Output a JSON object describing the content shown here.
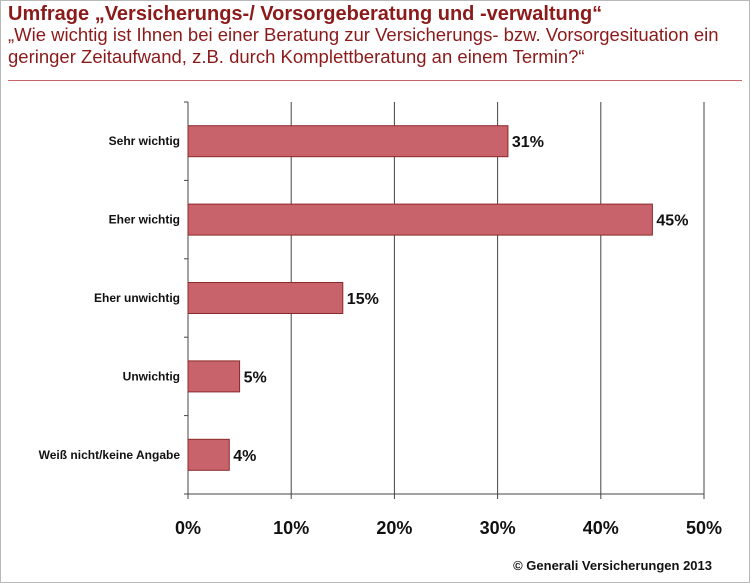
{
  "header": {
    "title": "Umfrage „Versicherungs-/ Vorsorgeberatung und -verwaltung“",
    "subtitle": "„Wie wichtig ist Ihnen bei einer Beratung zur Versicherungs- bzw. Vorsorgesituation ein geringer Zeitaufwand, z.B. durch Komplettberatung an einem Termin?“"
  },
  "footer": {
    "copyright": "© Generali Versicherungen 2013"
  },
  "colors": {
    "title": "#8b1a1a",
    "bar_fill": "#c8626b",
    "bar_stroke": "#8b2a2a",
    "grid": "#444444"
  },
  "chart_data": {
    "type": "bar",
    "orientation": "horizontal",
    "categories": [
      "Sehr wichtig",
      "Eher wichtig",
      "Eher unwichtig",
      "Unwichtig",
      "Weiß nicht/keine Angabe"
    ],
    "values": [
      31,
      45,
      15,
      5,
      4
    ],
    "value_labels": [
      "31%",
      "45%",
      "15%",
      "5%",
      "4%"
    ],
    "xlim": [
      0,
      50
    ],
    "x_ticks": [
      0,
      10,
      20,
      30,
      40,
      50
    ],
    "x_tick_labels": [
      "0%",
      "10%",
      "20%",
      "30%",
      "40%",
      "50%"
    ],
    "grid": true,
    "legend": false
  }
}
